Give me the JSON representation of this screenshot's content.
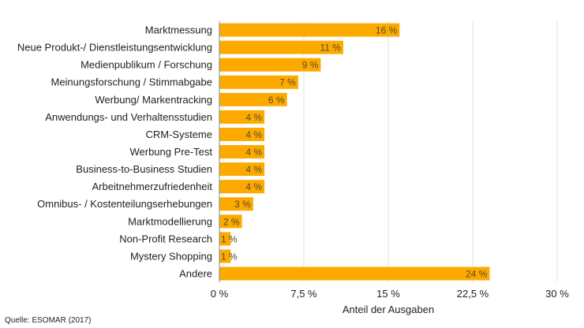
{
  "colors": {
    "bar": "#FCAA00",
    "grid": "#E0E0E0",
    "axis": "#888888",
    "text": "#222222",
    "label": "#5a4a2a"
  },
  "source": "Quelle: ESOMAR (2017)",
  "chart_data": {
    "type": "bar",
    "orientation": "horizontal",
    "categories": [
      "Marktmessung",
      "Neue Produkt-/ Dienstleistungsentwicklung",
      "Medienpublikum / Forschung",
      "Meinungsforschung / Stimmabgabe",
      "Werbung/ Markentracking",
      "Anwendungs- und Verhaltensstudien",
      "CRM-Systeme",
      "Werbung Pre-Test",
      "Business-to-Business Studien",
      "Arbeitnehmerzufriedenheit",
      "Omnibus- / Kostenteilungserhebungen",
      "Marktmodellierung",
      "Non-Profit Research",
      "Mystery Shopping",
      "Andere"
    ],
    "values": [
      16,
      11,
      9,
      7,
      6,
      4,
      4,
      4,
      4,
      4,
      3,
      2,
      1,
      1,
      24
    ],
    "value_labels": [
      "16 %",
      "11 %",
      "9 %",
      "7 %",
      "6 %",
      "4 %",
      "4 %",
      "4 %",
      "4 %",
      "4 %",
      "3 %",
      "2 %",
      "1 %",
      "1 %",
      "24 %"
    ],
    "xlim": [
      0,
      30
    ],
    "xticks": [
      0,
      7.5,
      15,
      22.5,
      30
    ],
    "xtick_labels": [
      "0 %",
      "7,5 %",
      "15 %",
      "22,5 %",
      "30 %"
    ],
    "xlabel": "Anteil der Ausgaben",
    "ylabel": "",
    "title": "",
    "grid": true,
    "legend": "none"
  }
}
